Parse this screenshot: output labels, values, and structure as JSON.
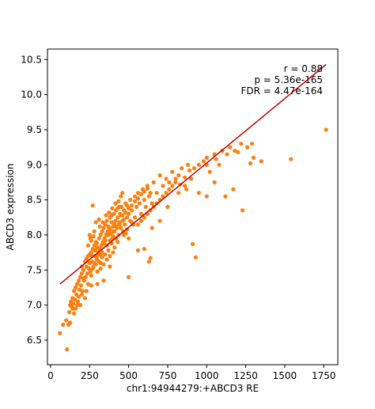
{
  "chart_data": {
    "type": "scatter",
    "xlabel": "chr1:94944279:+ABCD3 RE",
    "ylabel": "ABCD3 expression",
    "xlim": [
      -20,
      1840
    ],
    "ylim": [
      6.15,
      10.65
    ],
    "x_ticks": [
      0,
      250,
      500,
      750,
      1000,
      1250,
      1500,
      1750
    ],
    "y_ticks": [
      6.5,
      7.0,
      7.5,
      8.0,
      8.5,
      9.0,
      9.5,
      10.0,
      10.5
    ],
    "grid": false,
    "annotations": [
      "r = 0.88",
      "p = 5.36e-165",
      "FDR = 4.47e-164"
    ],
    "fit_line": {
      "x": [
        60,
        1765
      ],
      "y": [
        7.3,
        10.43
      ]
    },
    "colors": {
      "points": "#ff7f0e",
      "fit_line": "#c00000",
      "axes": "#000000"
    },
    "points": [
      [
        60,
        6.6
      ],
      [
        80,
        6.72
      ],
      [
        100,
        6.78
      ],
      [
        105,
        6.37
      ],
      [
        115,
        6.72
      ],
      [
        120,
        6.9
      ],
      [
        125,
        7.0
      ],
      [
        130,
        7.05
      ],
      [
        135,
        6.98
      ],
      [
        140,
        7.1
      ],
      [
        145,
        7.02
      ],
      [
        150,
        7.2
      ],
      [
        155,
        7.08
      ],
      [
        160,
        7.25
      ],
      [
        165,
        7.15
      ],
      [
        170,
        7.3
      ],
      [
        175,
        7.05
      ],
      [
        180,
        7.35
      ],
      [
        185,
        7.22
      ],
      [
        190,
        7.4
      ],
      [
        195,
        7.28
      ],
      [
        200,
        7.45
      ],
      [
        205,
        7.2
      ],
      [
        210,
        7.5
      ],
      [
        215,
        7.35
      ],
      [
        220,
        7.62
      ],
      [
        225,
        7.4
      ],
      [
        230,
        7.55
      ],
      [
        235,
        7.45
      ],
      [
        240,
        7.7
      ],
      [
        245,
        7.52
      ],
      [
        250,
        7.6
      ],
      [
        255,
        7.48
      ],
      [
        260,
        7.75
      ],
      [
        265,
        7.62
      ],
      [
        270,
        7.8
      ],
      [
        275,
        7.55
      ],
      [
        280,
        7.85
      ],
      [
        285,
        7.7
      ],
      [
        290,
        7.9
      ],
      [
        295,
        7.65
      ],
      [
        300,
        7.82
      ],
      [
        305,
        7.75
      ],
      [
        310,
        7.95
      ],
      [
        315,
        7.8
      ],
      [
        320,
        8.0
      ],
      [
        325,
        7.85
      ],
      [
        330,
        8.05
      ],
      [
        335,
        7.9
      ],
      [
        340,
        8.1
      ],
      [
        345,
        7.95
      ],
      [
        350,
        8.15
      ],
      [
        355,
        8.0
      ],
      [
        360,
        8.2
      ],
      [
        365,
        8.05
      ],
      [
        370,
        8.0
      ],
      [
        375,
        8.1
      ],
      [
        380,
        8.25
      ],
      [
        385,
        8.02
      ],
      [
        390,
        8.18
      ],
      [
        395,
        7.95
      ],
      [
        400,
        8.12
      ],
      [
        405,
        8.3
      ],
      [
        410,
        8.05
      ],
      [
        415,
        8.2
      ],
      [
        420,
        8.35
      ],
      [
        425,
        8.1
      ],
      [
        430,
        8.25
      ],
      [
        435,
        8.0
      ],
      [
        440,
        8.15
      ],
      [
        445,
        8.3
      ],
      [
        450,
        8.1
      ],
      [
        455,
        8.4
      ],
      [
        460,
        8.2
      ],
      [
        465,
        8.05
      ],
      [
        470,
        8.35
      ],
      [
        475,
        8.15
      ],
      [
        480,
        8.45
      ],
      [
        490,
        8.25
      ],
      [
        500,
        8.3
      ],
      [
        510,
        8.5
      ],
      [
        520,
        8.35
      ],
      [
        530,
        8.15
      ],
      [
        540,
        8.55
      ],
      [
        550,
        8.4
      ],
      [
        560,
        8.6
      ],
      [
        570,
        8.45
      ],
      [
        580,
        8.3
      ],
      [
        590,
        8.65
      ],
      [
        600,
        8.5
      ],
      [
        610,
        8.4
      ],
      [
        620,
        8.7
      ],
      [
        630,
        8.55
      ],
      [
        640,
        8.6
      ],
      [
        650,
        8.45
      ],
      [
        660,
        8.75
      ],
      [
        680,
        8.6
      ],
      [
        700,
        8.85
      ],
      [
        720,
        8.7
      ],
      [
        740,
        8.8
      ],
      [
        760,
        8.65
      ],
      [
        780,
        8.9
      ],
      [
        800,
        8.75
      ],
      [
        820,
        8.85
      ],
      [
        840,
        8.95
      ],
      [
        860,
        8.7
      ],
      [
        880,
        9.0
      ],
      [
        900,
        8.8
      ],
      [
        920,
        8.95
      ],
      [
        950,
        8.6
      ],
      [
        980,
        9.05
      ],
      [
        1000,
        9.1
      ],
      [
        1020,
        8.9
      ],
      [
        1050,
        9.15
      ],
      [
        1080,
        9.0
      ],
      [
        1100,
        9.2
      ],
      [
        1150,
        9.25
      ],
      [
        1180,
        9.2
      ],
      [
        1220,
        9.3
      ],
      [
        1260,
        9.25
      ],
      [
        1290,
        9.3
      ],
      [
        1300,
        9.1
      ],
      [
        1350,
        9.05
      ],
      [
        1280,
        9.02
      ],
      [
        1230,
        8.35
      ],
      [
        1170,
        8.65
      ],
      [
        1120,
        8.55
      ],
      [
        1050,
        8.75
      ],
      [
        1000,
        8.55
      ],
      [
        910,
        7.87
      ],
      [
        930,
        7.68
      ],
      [
        640,
        7.67
      ],
      [
        630,
        7.62
      ],
      [
        500,
        7.4
      ],
      [
        420,
        7.95
      ],
      [
        380,
        7.55
      ],
      [
        340,
        7.35
      ],
      [
        300,
        7.3
      ],
      [
        260,
        7.28
      ],
      [
        230,
        7.2
      ],
      [
        220,
        7.1
      ],
      [
        200,
        7.15
      ],
      [
        190,
        7.0
      ],
      [
        170,
        7.0
      ],
      [
        160,
        6.95
      ],
      [
        150,
        6.88
      ],
      [
        250,
        8.0
      ],
      [
        270,
        8.42
      ],
      [
        280,
        8.05
      ],
      [
        290,
        8.18
      ],
      [
        310,
        8.22
      ],
      [
        320,
        7.6
      ],
      [
        330,
        7.68
      ],
      [
        350,
        7.72
      ],
      [
        360,
        7.85
      ],
      [
        370,
        7.78
      ],
      [
        380,
        7.92
      ],
      [
        390,
        7.88
      ],
      [
        400,
        7.98
      ],
      [
        410,
        7.82
      ],
      [
        430,
        7.9
      ],
      [
        440,
        8.4
      ],
      [
        450,
        8.55
      ],
      [
        460,
        8.6
      ],
      [
        470,
        8.0
      ],
      [
        480,
        8.02
      ],
      [
        490,
        8.08
      ],
      [
        500,
        7.95
      ],
      [
        510,
        8.2
      ],
      [
        520,
        8.18
      ],
      [
        540,
        8.25
      ],
      [
        560,
        8.15
      ],
      [
        580,
        8.2
      ],
      [
        600,
        8.25
      ],
      [
        620,
        8.3
      ],
      [
        640,
        8.35
      ],
      [
        660,
        8.4
      ],
      [
        680,
        8.45
      ],
      [
        700,
        8.5
      ],
      [
        720,
        8.55
      ],
      [
        740,
        8.6
      ],
      [
        760,
        8.75
      ],
      [
        780,
        8.7
      ],
      [
        800,
        8.8
      ],
      [
        830,
        8.72
      ],
      [
        860,
        8.82
      ],
      [
        890,
        8.92
      ],
      [
        950,
        9.0
      ],
      [
        1000,
        9.0
      ],
      [
        1060,
        9.08
      ],
      [
        1130,
        9.15
      ],
      [
        1200,
        9.18
      ],
      [
        1540,
        9.08
      ],
      [
        1765,
        9.5
      ],
      [
        240,
        7.3
      ],
      [
        260,
        7.42
      ],
      [
        280,
        7.6
      ],
      [
        300,
        7.7
      ],
      [
        320,
        7.72
      ],
      [
        340,
        7.88
      ],
      [
        360,
        8.02
      ],
      [
        380,
        8.08
      ],
      [
        400,
        8.05
      ],
      [
        420,
        8.12
      ],
      [
        440,
        8.18
      ],
      [
        460,
        8.28
      ],
      [
        480,
        8.32
      ],
      [
        500,
        8.38
      ],
      [
        520,
        8.42
      ],
      [
        540,
        8.48
      ],
      [
        560,
        8.52
      ],
      [
        580,
        8.58
      ],
      [
        600,
        8.62
      ],
      [
        620,
        8.66
      ],
      [
        200,
        7.55
      ],
      [
        210,
        7.38
      ],
      [
        230,
        7.66
      ],
      [
        250,
        7.72
      ],
      [
        270,
        7.52
      ],
      [
        290,
        7.58
      ],
      [
        310,
        7.62
      ],
      [
        330,
        7.75
      ],
      [
        350,
        7.92
      ],
      [
        370,
        8.12
      ],
      [
        390,
        8.28
      ],
      [
        410,
        8.15
      ],
      [
        430,
        8.38
      ],
      [
        450,
        8.28
      ],
      [
        470,
        8.22
      ],
      [
        490,
        8.42
      ],
      [
        560,
        7.78
      ],
      [
        600,
        7.8
      ],
      [
        650,
        8.1
      ],
      [
        700,
        8.2
      ],
      [
        750,
        8.4
      ],
      [
        820,
        8.6
      ],
      [
        870,
        8.65
      ],
      [
        180,
        7.12
      ],
      [
        140,
        6.95
      ],
      [
        125,
        6.75
      ],
      [
        260,
        7.92
      ],
      [
        275,
        7.98
      ],
      [
        295,
        7.88
      ],
      [
        315,
        8.12
      ],
      [
        335,
        8.18
      ],
      [
        355,
        8.28
      ],
      [
        375,
        8.32
      ],
      [
        395,
        8.38
      ],
      [
        415,
        8.45
      ],
      [
        435,
        8.48
      ],
      [
        300,
        7.48
      ],
      [
        320,
        7.52
      ],
      [
        340,
        7.58
      ],
      [
        360,
        7.65
      ],
      [
        380,
        7.7
      ],
      [
        400,
        7.75
      ],
      [
        240,
        7.85
      ],
      [
        255,
        7.95
      ],
      [
        265,
        7.7
      ],
      [
        285,
        7.78
      ]
    ]
  }
}
